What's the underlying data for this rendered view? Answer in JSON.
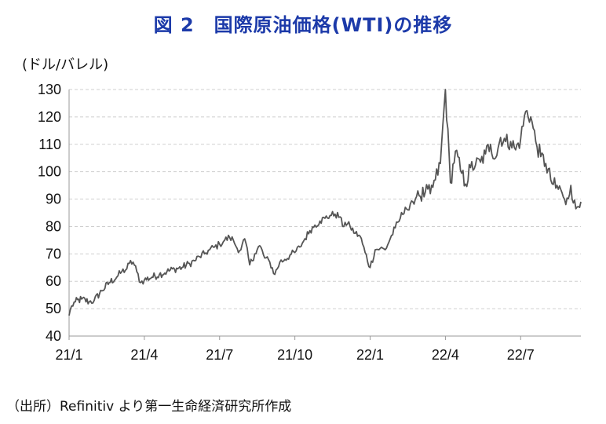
{
  "title": "図 2　国際原油価格(WTI)の推移",
  "unit_label": "(ドル/バレル)",
  "source": "（出所）Refinitiv より第一生命経済研究所作成",
  "chart_data": {
    "type": "line",
    "title": "図 2　国際原油価格(WTI)の推移",
    "ylabel": "(ドル/バレル)",
    "xlabel": "",
    "ylim": [
      40,
      130
    ],
    "yticks": [
      40,
      50,
      60,
      70,
      80,
      90,
      100,
      110,
      120,
      130
    ],
    "ytick_labels": [
      "40",
      "50",
      "60",
      "70",
      "80",
      "90",
      "100",
      "110",
      "120",
      "130"
    ],
    "xlim_months": [
      0,
      20.4
    ],
    "xticks": [
      0,
      3,
      6,
      9,
      12,
      15,
      18
    ],
    "xtick_labels": [
      "21/1",
      "21/4",
      "21/7",
      "21/10",
      "22/1",
      "22/4",
      "22/7"
    ],
    "grid": "horizontal dashed",
    "series": [
      {
        "name": "WTI",
        "color": "#555555",
        "x_months": [
          0,
          0.1,
          0.25,
          0.5,
          0.8,
          1.0,
          1.3,
          1.6,
          1.9,
          2.1,
          2.3,
          2.4,
          2.55,
          2.7,
          2.85,
          3.0,
          3.3,
          3.6,
          3.9,
          4.2,
          4.5,
          4.8,
          5.0,
          5.2,
          5.4,
          5.6,
          5.8,
          6.0,
          6.2,
          6.4,
          6.55,
          6.7,
          6.85,
          7.0,
          7.2,
          7.4,
          7.6,
          7.8,
          8.0,
          8.2,
          8.4,
          8.6,
          8.8,
          9.0,
          9.2,
          9.4,
          9.6,
          9.8,
          10.0,
          10.2,
          10.4,
          10.6,
          10.8,
          10.9,
          11.0,
          11.2,
          11.4,
          11.6,
          11.8,
          12.0,
          12.2,
          12.4,
          12.6,
          12.8,
          13.0,
          13.2,
          13.4,
          13.55,
          13.7,
          13.8,
          13.9,
          14.0,
          14.2,
          14.4,
          14.6,
          14.8,
          15.0,
          15.2,
          15.4,
          15.6,
          15.8,
          16.0,
          16.2,
          16.4,
          16.6,
          16.8,
          17.0,
          17.2,
          17.4,
          17.6,
          17.8,
          18.0,
          18.2,
          18.4,
          18.6,
          18.8,
          19.0,
          19.2,
          19.4,
          19.6,
          19.8,
          20.0,
          20.2,
          20.4
        ],
        "values": [
          47.5,
          51,
          52.5,
          53.5,
          52.5,
          53,
          56.5,
          59.5,
          61.5,
          63.5,
          64.5,
          66.5,
          67,
          63.5,
          59.5,
          60.5,
          61.5,
          62.5,
          63.5,
          64.5,
          65,
          66.5,
          67.5,
          69,
          70,
          71.5,
          72.5,
          73.5,
          75,
          76,
          75,
          72,
          71.5,
          75.5,
          66,
          70,
          73,
          68.5,
          67,
          62.5,
          67,
          68,
          69.5,
          70.5,
          72.5,
          75.5,
          78.5,
          80.5,
          82,
          83,
          84,
          84.5,
          83.5,
          80,
          81.5,
          80,
          77.5,
          76.5,
          70.5,
          65,
          71.5,
          72,
          71.5,
          75.5,
          79.5,
          83,
          87,
          86,
          89,
          90,
          93,
          91,
          92.5,
          92,
          97,
          103,
          130,
          96,
          107.5,
          100.5,
          95.5,
          101.5,
          102.5,
          103.5,
          106.5,
          110,
          105,
          112.5,
          111,
          111,
          108,
          112,
          122,
          120,
          111,
          105.5,
          103,
          97,
          94,
          93.5,
          88,
          95,
          86.5,
          89
        ]
      }
    ]
  }
}
